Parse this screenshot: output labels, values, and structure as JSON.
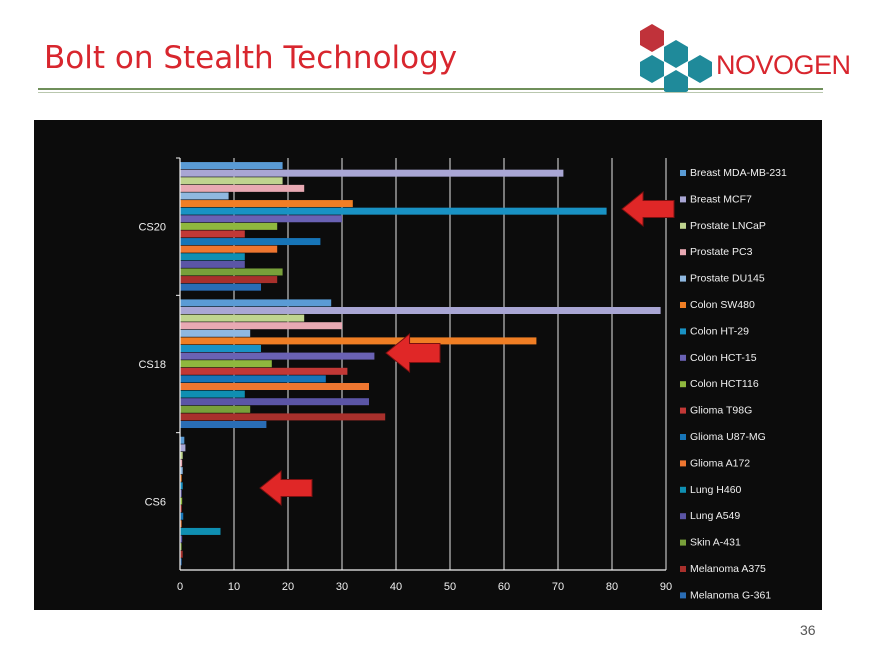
{
  "slide": {
    "title": "Bolt on Stealth Technology",
    "logo_text": "NOVOGEN",
    "page_number": "36"
  },
  "colors": {
    "title": "#d8262e",
    "panel": "#0c0c0c",
    "arrow": "#e02727",
    "logo_red": "#c0323a",
    "logo_teal": "#1f8a9a"
  },
  "chart_data": {
    "type": "bar",
    "orientation": "horizontal",
    "categories": [
      "CS20",
      "CS18",
      "CS6"
    ],
    "xticks": [
      "0",
      "10",
      "20",
      "30",
      "40",
      "50",
      "60",
      "70",
      "80",
      "90"
    ],
    "xlim": [
      0,
      90
    ],
    "grid": true,
    "legend_position": "right",
    "series": [
      {
        "name": "Breast MDA-MB-231",
        "color": "#5a9bd5",
        "values": [
          19,
          28,
          0.8
        ]
      },
      {
        "name": "Breast MCF7",
        "color": "#a9a6d4",
        "values": [
          71,
          89,
          1.0
        ]
      },
      {
        "name": "Prostate LNCaP",
        "color": "#bfd48f",
        "values": [
          19,
          23,
          0.5
        ]
      },
      {
        "name": "Prostate PC3",
        "color": "#e8a9b3",
        "values": [
          23,
          30,
          0.4
        ]
      },
      {
        "name": "Prostate DU145",
        "color": "#8fb8e0",
        "values": [
          9,
          13,
          0.5
        ]
      },
      {
        "name": "Colon SW480",
        "color": "#f07e24",
        "values": [
          32,
          66,
          0.3
        ]
      },
      {
        "name": "Colon HT-29",
        "color": "#1992c4",
        "values": [
          79,
          15,
          0.5
        ]
      },
      {
        "name": "Colon HCT-15",
        "color": "#6a62b4",
        "values": [
          30,
          36,
          0.3
        ]
      },
      {
        "name": "Colon HCT116",
        "color": "#8fb83e",
        "values": [
          18,
          17,
          0.4
        ]
      },
      {
        "name": "Glioma T98G",
        "color": "#c23836",
        "values": [
          12,
          31,
          0.3
        ]
      },
      {
        "name": "Glioma U87-MG",
        "color": "#1775b8",
        "values": [
          26,
          27,
          0.6
        ]
      },
      {
        "name": "Glioma A172",
        "color": "#ee7630",
        "values": [
          18,
          35,
          0.3
        ]
      },
      {
        "name": "Lung H460",
        "color": "#0f8fb2",
        "values": [
          12,
          12,
          7.5
        ]
      },
      {
        "name": "Lung A549",
        "color": "#5b55a6",
        "values": [
          12,
          35,
          0.4
        ]
      },
      {
        "name": "Skin A-431",
        "color": "#78a03a",
        "values": [
          19,
          13,
          0.3
        ]
      },
      {
        "name": "Melanoma A375",
        "color": "#a8302c",
        "values": [
          18,
          38,
          0.5
        ]
      },
      {
        "name": "Melanoma G-361",
        "color": "#2a6db5",
        "values": [
          15,
          16,
          0.3
        ]
      }
    ],
    "annotations": [
      {
        "type": "arrow",
        "direction": "left",
        "near_category": "CS20",
        "near_series": "Colon HT-29"
      },
      {
        "type": "arrow",
        "direction": "left",
        "near_category": "CS18",
        "near_series": "Colon HT-29"
      },
      {
        "type": "arrow",
        "direction": "left",
        "near_category": "CS6",
        "near_series": "Lung H460"
      }
    ]
  }
}
